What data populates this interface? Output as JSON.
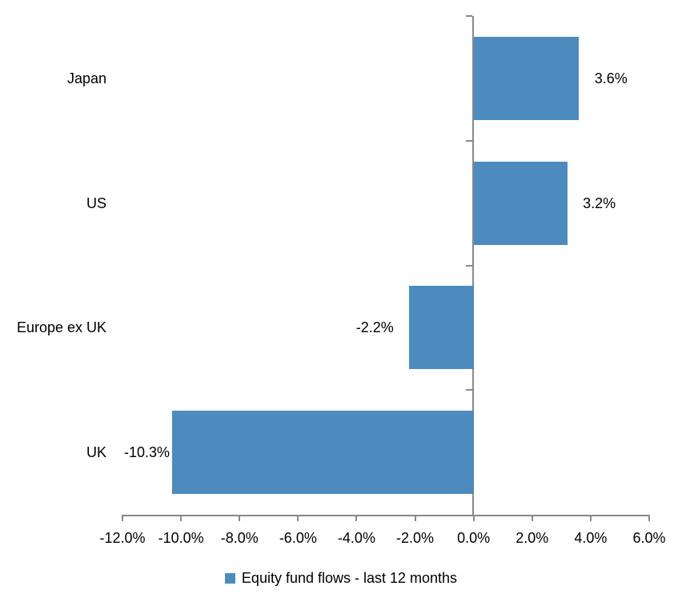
{
  "chart_data": {
    "type": "bar",
    "orientation": "horizontal",
    "title": "",
    "categories": [
      "Japan",
      "US",
      "Europe ex UK",
      "UK"
    ],
    "series": [
      {
        "name": "Equity fund flows - last 12 months",
        "values": [
          3.6,
          3.2,
          -2.2,
          -10.3
        ],
        "value_labels": [
          "3.6%",
          "3.2%",
          "-2.2%",
          "-10.3%"
        ]
      }
    ],
    "xlabel": "",
    "ylabel": "",
    "xlim": [
      -12,
      6
    ],
    "x_tick_values": [
      -12,
      -10,
      -8,
      -6,
      -4,
      -2,
      0,
      2,
      4,
      6
    ],
    "x_tick_labels": [
      "-12.0%",
      "-10.0%",
      "-8.0%",
      "-6.0%",
      "-4.0%",
      "-2.0%",
      "0.0%",
      "2.0%",
      "4.0%",
      "6.0%"
    ],
    "grid": false,
    "legend_position": "bottom",
    "colors": {
      "bar": "#4D8BBE",
      "axis": "#898989",
      "text": "#000000",
      "background": "#FFFFFF"
    }
  },
  "legend": {
    "label": "Equity fund flows - last 12 months"
  }
}
